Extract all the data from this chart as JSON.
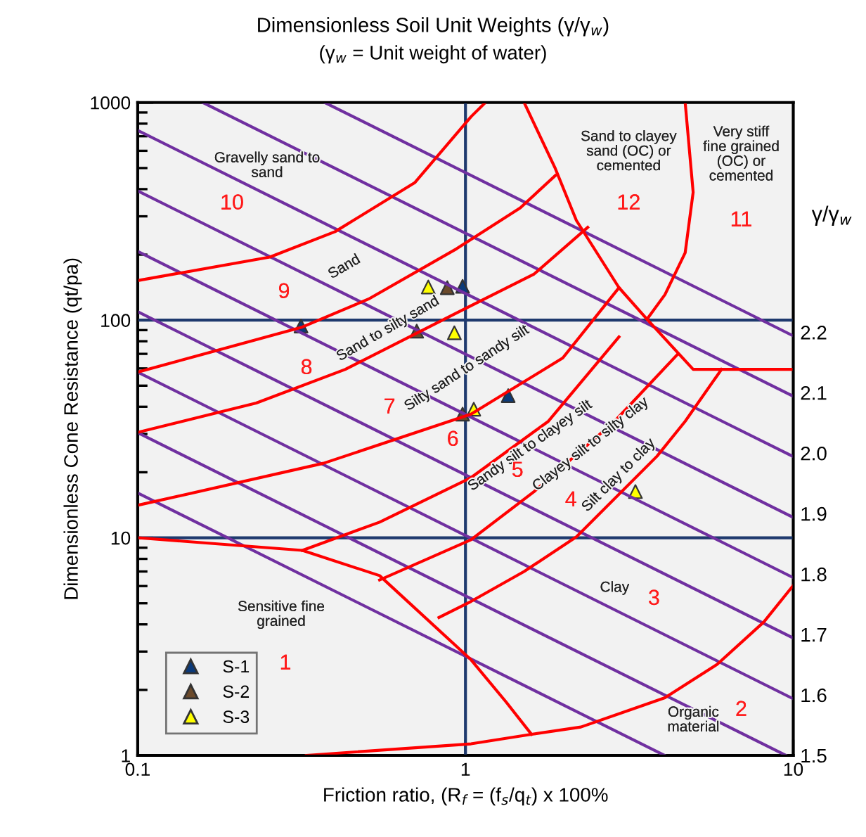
{
  "chart_data": {
    "type": "scatter",
    "title": "Dimensionless Soil Unit Weights (γ/γ$_{w}$)",
    "subtitle": "(γ$_{w}$ = Unit weight of water)",
    "xlabel": "Friction ratio, (R$_{f}$ = (f$_{s}$/q$_{t}$) x 100%",
    "ylabel": "Dimensionless Cone Resistance (qt/pa)",
    "y2label": "γ/γ$_{w}$",
    "log": "xy",
    "xlim": [
      0.1,
      10
    ],
    "xticks": [
      0.1,
      1,
      10
    ],
    "ylim": [
      1,
      1000
    ],
    "yticks": [
      1,
      10,
      100,
      1000
    ],
    "y2lim": [
      1.5,
      2.58
    ],
    "y2ticks": [
      1.5,
      1.6,
      1.7,
      1.8,
      1.9,
      {
        "value": 2.0,
        "label": "2.0"
      },
      2.1,
      2.2
    ],
    "legend": "bottom left",
    "ref_lines": [
      {
        "axis": "x",
        "value": 1,
        "color": "#1f3a6e"
      },
      {
        "axis": "y",
        "value": 10,
        "color": "#1f3a6e"
      },
      {
        "axis": "y",
        "value": 100,
        "color": "#1f3a6e"
      }
    ],
    "series": [
      {
        "type": "line",
        "color": "#7030a0",
        "x": [
          0.1,
          4.05
        ],
        "values": [
          16.06,
          1
        ]
      },
      {
        "type": "line",
        "color": "#7030a0",
        "x": [
          0.1,
          9.5
        ],
        "values": [
          30.4,
          1
        ]
      },
      {
        "type": "line",
        "color": "#7030a0",
        "x": [
          0.1,
          10
        ],
        "values": [
          57.7,
          1.82
        ]
      },
      {
        "type": "line",
        "color": "#7030a0",
        "x": [
          0.1,
          10
        ],
        "values": [
          109.4,
          3.46
        ]
      },
      {
        "type": "line",
        "color": "#7030a0",
        "x": [
          0.1,
          10
        ],
        "values": [
          207,
          6.56
        ]
      },
      {
        "type": "line",
        "color": "#7030a0",
        "x": [
          0.1,
          10
        ],
        "values": [
          393,
          12.4
        ]
      },
      {
        "type": "line",
        "color": "#7030a0",
        "x": [
          0.1,
          10
        ],
        "values": [
          745,
          23.6
        ]
      },
      {
        "type": "line",
        "color": "#7030a0",
        "x": [
          0.158,
          10
        ],
        "values": [
          1000,
          44.7
        ]
      },
      {
        "type": "line",
        "color": "#7030a0",
        "x": [
          0.372,
          10
        ],
        "values": [
          1000,
          84.7
        ]
      },
      {
        "type": "line",
        "color": "#ff0000",
        "x": [
          0.1,
          0.253,
          0.4,
          0.7,
          1.04,
          1.15
        ],
        "values": [
          152,
          195,
          255,
          428,
          861,
          1000
        ]
      },
      {
        "type": "line",
        "color": "#ff0000",
        "x": [
          0.1,
          0.318,
          0.506,
          0.94,
          1.47,
          1.88
        ],
        "values": [
          57.7,
          93,
          125,
          213,
          328,
          462
        ]
      },
      {
        "type": "line",
        "color": "#ff0000",
        "x": [
          0.1,
          0.23,
          0.43,
          0.94,
          1.62,
          2.36
        ],
        "values": [
          30.5,
          41.6,
          59.4,
          108,
          163,
          267
        ]
      },
      {
        "type": "line",
        "color": "#ff0000",
        "x": [
          0.1,
          0.369,
          1.04,
          1.98,
          2.94
        ],
        "values": [
          14.1,
          22,
          37,
          67,
          141
        ]
      },
      {
        "type": "line",
        "color": "#ff0000",
        "x": [
          0.1,
          0.318,
          0.547,
          1.04,
          1.33,
          1.59
        ],
        "values": [
          10,
          8.75,
          6.7,
          2.75,
          1.76,
          1.25
        ]
      },
      {
        "type": "line",
        "color": "#ff0000",
        "x": [
          0.318,
          0.547,
          1.04,
          1.79,
          2.94
        ],
        "values": [
          8.75,
          11.8,
          18.9,
          34.3,
          83.8
        ]
      },
      {
        "type": "line",
        "color": "#ff0000",
        "x": [
          0.547,
          1.04,
          1.62,
          2.85,
          4.45
        ],
        "values": [
          6.4,
          9.8,
          16.3,
          34.3,
          70
        ]
      },
      {
        "type": "line",
        "color": "#ff0000",
        "x": [
          0.83,
          1.04,
          1.51,
          2.18,
          3.84,
          4.68,
          6.04
        ],
        "values": [
          4.3,
          5.1,
          7.0,
          10.1,
          23.7,
          34.3,
          59.4
        ]
      },
      {
        "type": "line",
        "color": "#ff0000",
        "x": [
          0.327,
          1.04,
          1.59,
          2.25,
          4.06,
          5.86,
          8.13,
          10
        ],
        "values": [
          1,
          1.13,
          1.25,
          1.35,
          1.84,
          2.62,
          4.1,
          6.04
        ]
      },
      {
        "type": "line",
        "color": "#ff0000",
        "x": [
          1.51,
          1.88,
          2.18,
          2.94,
          3.58,
          4.95,
          10
        ],
        "values": [
          1000,
          497,
          287,
          141,
          101,
          59.4,
          59.4
        ]
      },
      {
        "type": "line",
        "color": "#ff0000",
        "x": [
          4.68,
          4.95,
          4.68,
          4.06,
          3.58
        ],
        "values": [
          1000,
          387,
          204,
          131,
          101
        ]
      },
      {
        "name": "S-1",
        "marker": "triangle",
        "color": "#0b3a7a",
        "x": [
          0.315,
          0.98,
          1.35
        ],
        "values": [
          94,
          143,
          45
        ]
      },
      {
        "name": "S-2",
        "marker": "triangle",
        "color": "#6b4a2b",
        "x": [
          0.71,
          0.88,
          0.98
        ],
        "values": [
          89,
          141,
          37
        ]
      },
      {
        "name": "S-3",
        "marker": "triangle",
        "color": "#ffff00",
        "x": [
          0.77,
          0.925,
          1.06,
          3.3
        ],
        "values": [
          142,
          87.5,
          39,
          16.3
        ]
      }
    ],
    "annotations": [
      "Gravelly sand to\nsand",
      "10",
      "Sand",
      "9",
      "Sand to silty sand",
      "8",
      "Silty sand to sandy silt",
      "7",
      "6",
      "Sandy silt to clayey silt",
      "5",
      "Clayey silt to silty clay",
      "4",
      "Silt clay to clay",
      "Clay",
      "3",
      "Sensitive fine\ngrained",
      "1",
      "Organic\nmaterial",
      "2",
      "Sand to clayey\nsand (OC) or\ncemented",
      "12",
      "Very stiff\nfine grained\n(OC) or\ncemented",
      "11"
    ]
  }
}
